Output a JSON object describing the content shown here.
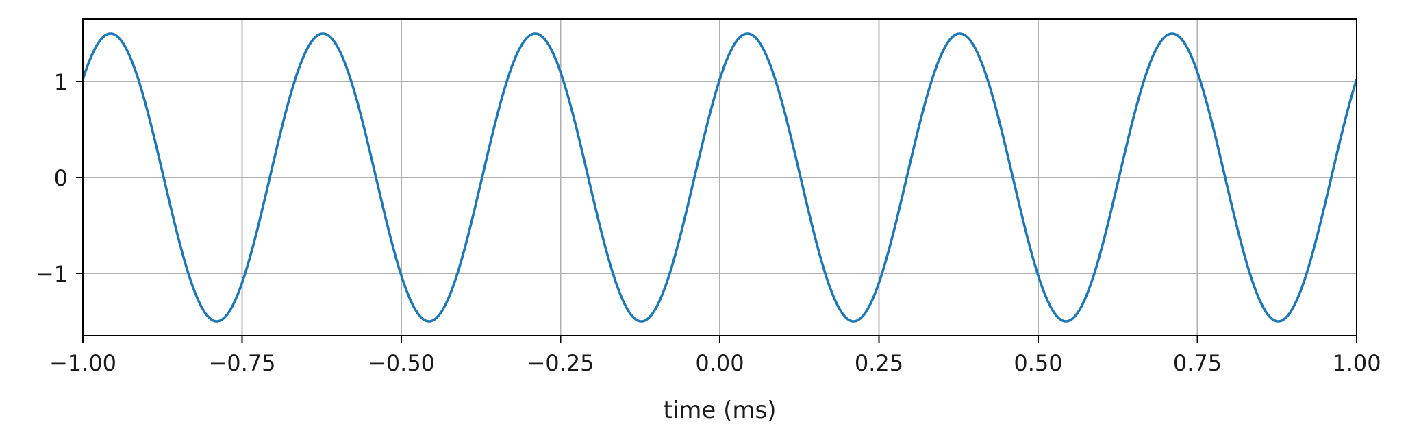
{
  "chart_data": {
    "type": "line",
    "title": "",
    "xlabel": "time (ms)",
    "ylabel": "",
    "xlim": [
      -1.0,
      1.0
    ],
    "ylim": [
      -1.65,
      1.65
    ],
    "grid": true,
    "legend": "none",
    "colors": {
      "line": "#1f77b4",
      "grid": "#b0b0b0",
      "axes": "#000000"
    },
    "xticks": [
      -1.0,
      -0.75,
      -0.5,
      -0.25,
      0.0,
      0.25,
      0.5,
      0.75,
      1.0
    ],
    "xtick_labels": [
      "−1.00",
      "−0.75",
      "−0.50",
      "−0.25",
      "0.00",
      "0.25",
      "0.50",
      "0.75",
      "1.00"
    ],
    "yticks": [
      -1,
      0,
      1
    ],
    "ytick_labels": [
      "−1",
      "0",
      "1"
    ],
    "series": [
      {
        "function": "sinusoid",
        "amplitude": 1.5,
        "frequency_khz": 3.0,
        "phase_rad": 0.75,
        "x_range": [
          -1.0,
          1.0
        ]
      }
    ]
  }
}
